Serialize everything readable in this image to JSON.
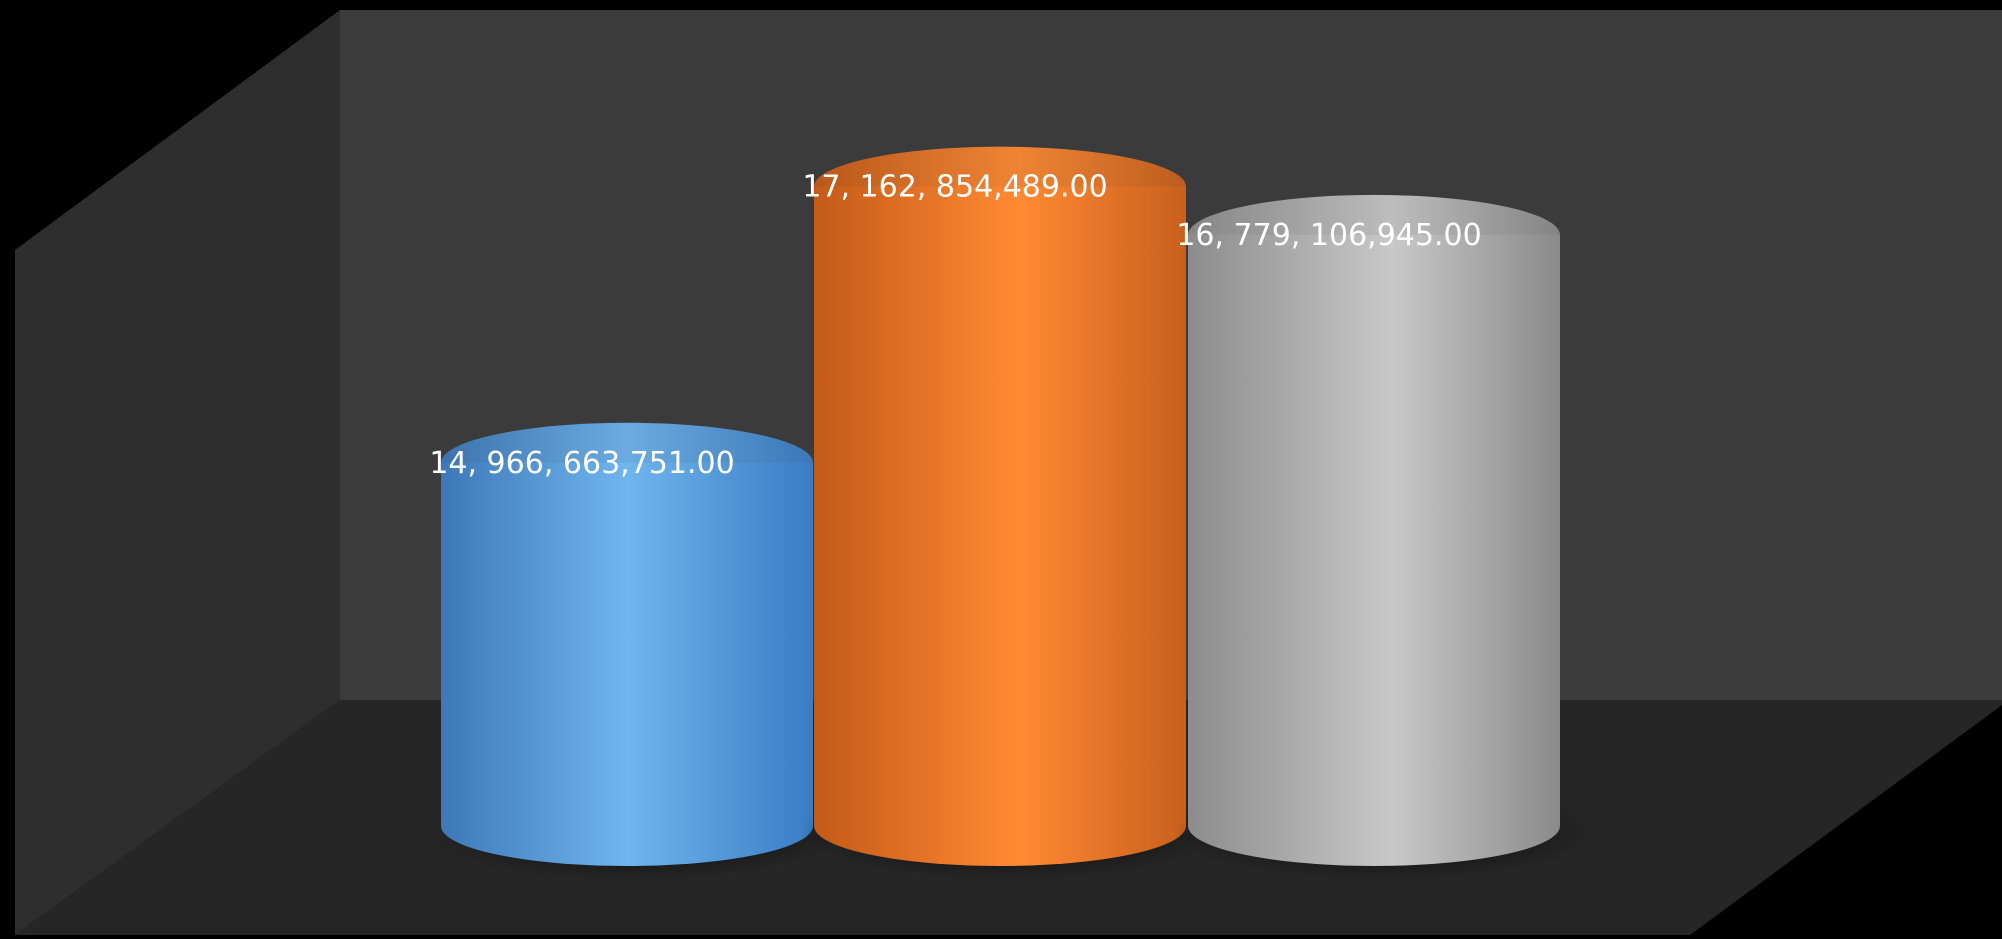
{
  "chart_data": {
    "type": "bar",
    "style": "3d-cylinder",
    "categories": [
      "",
      "",
      ""
    ],
    "series": [
      {
        "values": [
          14966663751.0,
          17162854489.0,
          16779106945.0
        ],
        "colors": [
          "#4f9fe6",
          "#f07a28",
          "#b4b4b4"
        ]
      }
    ],
    "data_labels": [
      "14, 966, 663,751.00",
      "17, 162, 854,489.00",
      "16, 779, 106,945.00"
    ],
    "title": "",
    "xlabel": "",
    "ylabel": "",
    "grid": false,
    "legend": "none",
    "background": "#000000"
  }
}
